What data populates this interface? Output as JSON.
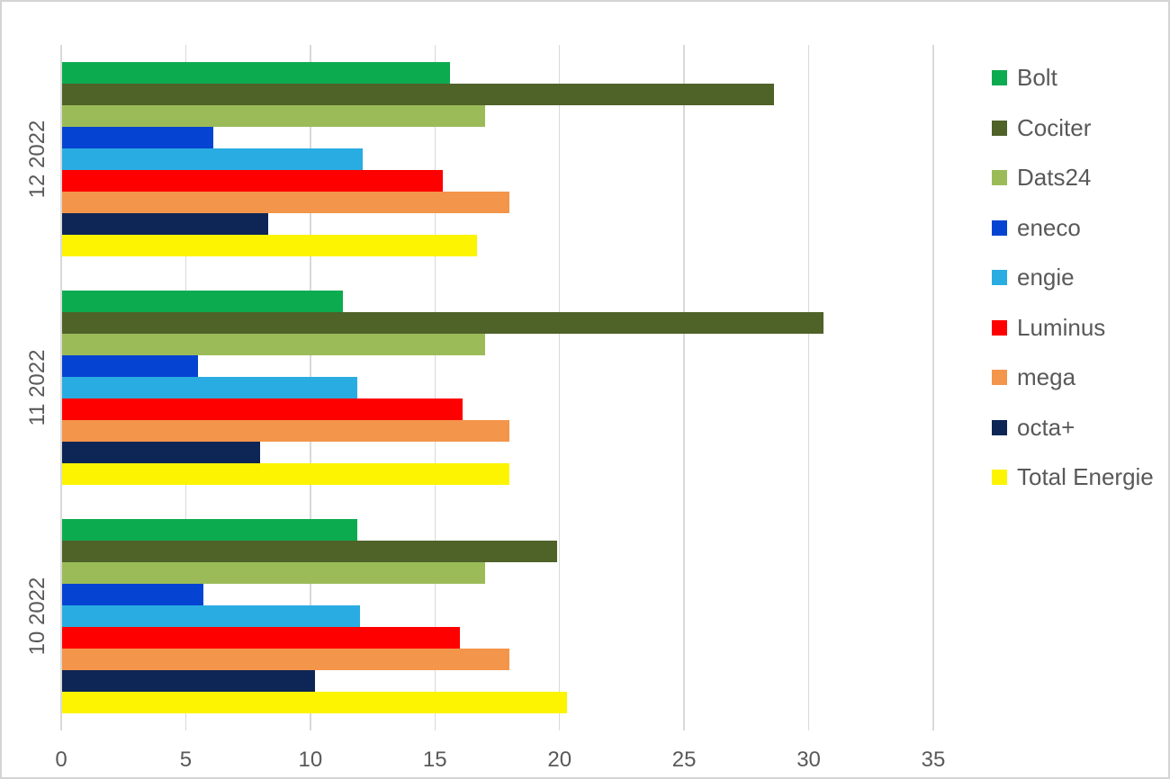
{
  "chart_data": {
    "type": "bar",
    "orientation": "horizontal",
    "title": "",
    "xlabel": "",
    "ylabel": "",
    "categories": [
      "12 2022",
      "11 2022",
      "10 2022"
    ],
    "series": [
      {
        "name": "Bolt",
        "color": "#0DAB50",
        "values": [
          15.6,
          11.3,
          11.9
        ]
      },
      {
        "name": "Cociter",
        "color": "#4F6228",
        "values": [
          28.6,
          30.6,
          19.9
        ]
      },
      {
        "name": "Dats24",
        "color": "#9BBB59",
        "values": [
          17.0,
          17.0,
          17.0
        ]
      },
      {
        "name": "eneco",
        "color": "#0544D2",
        "values": [
          6.1,
          5.5,
          5.7
        ]
      },
      {
        "name": "engie",
        "color": "#29ACE2",
        "values": [
          12.1,
          11.9,
          12.0
        ]
      },
      {
        "name": "Luminus",
        "color": "#FE0000",
        "values": [
          15.3,
          16.1,
          16.0
        ]
      },
      {
        "name": "mega",
        "color": "#F3954A",
        "values": [
          18.0,
          18.0,
          18.0
        ]
      },
      {
        "name": "octa+",
        "color": "#0E2655",
        "values": [
          8.3,
          8.0,
          10.2
        ]
      },
      {
        "name": "Total Energie",
        "color": "#FCF400",
        "values": [
          16.7,
          18.0,
          20.3
        ]
      }
    ],
    "x_axis": {
      "min": 0,
      "max": 35,
      "tick_step": 5,
      "tick_labels": [
        "0",
        "5",
        "10",
        "15",
        "20",
        "25",
        "30",
        "35"
      ]
    },
    "grid": true,
    "gridline_color": "#D9D9D9",
    "text_color": "#595959",
    "background_color": "#FFFFFF",
    "legend_position": "right"
  }
}
